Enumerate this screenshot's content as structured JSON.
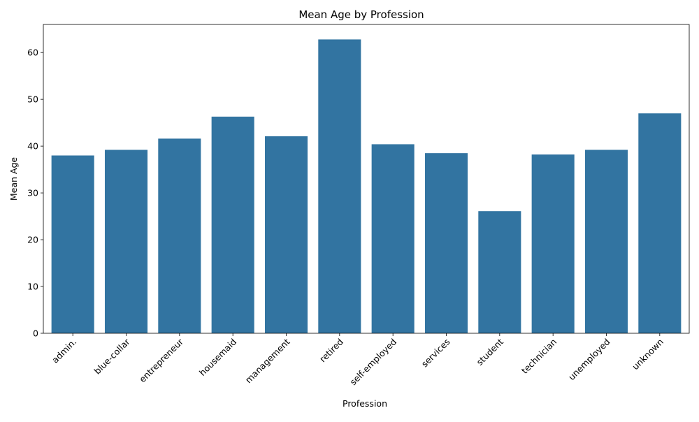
{
  "chart_data": {
    "type": "bar",
    "title": "Mean Age by Profession",
    "xlabel": "Profession",
    "ylabel": "Mean Age",
    "categories": [
      "admin.",
      "blue-collar",
      "entrepreneur",
      "housemaid",
      "management",
      "retired",
      "self-employed",
      "services",
      "student",
      "technician",
      "unemployed",
      "unknown"
    ],
    "values": [
      38.0,
      39.2,
      41.6,
      46.3,
      42.1,
      62.8,
      40.4,
      38.5,
      26.1,
      38.2,
      39.2,
      47.0
    ],
    "ylim": [
      0,
      66
    ],
    "yticks": [
      0,
      10,
      20,
      30,
      40,
      50,
      60
    ],
    "bar_color": "#3274a1",
    "grid": false,
    "legend": "none"
  }
}
